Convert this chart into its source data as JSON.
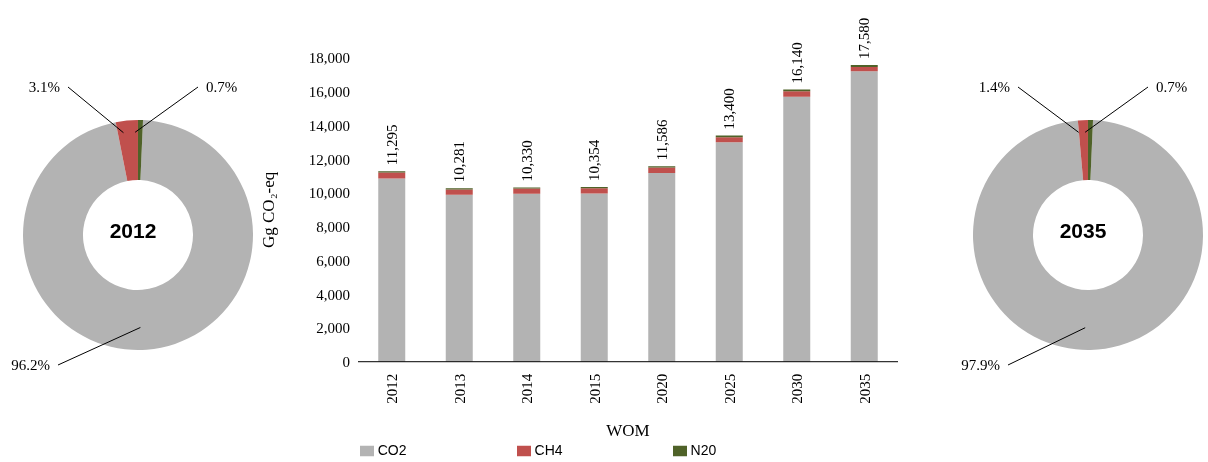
{
  "chart_data": [
    {
      "type": "donut",
      "title": "2012",
      "categories": [
        null,
        null,
        null
      ],
      "values": [
        96.2,
        3.1,
        0.7
      ],
      "colors": [
        "#b3b3b3",
        "#c0504d",
        "#4f6228"
      ],
      "value_labels": [
        "96.2%",
        "3.1%",
        "0.7%"
      ]
    },
    {
      "type": "bar",
      "stacked": true,
      "ylabel": "Gg CO₂-eq",
      "xlabel": "WOM",
      "categories": [
        "2012",
        "2013",
        "2014",
        "2015",
        "2020",
        "2025",
        "2030",
        "2035"
      ],
      "series": [
        {
          "name": "CO2",
          "color": "#b3b3b3",
          "values": [
            10865,
            9901,
            9950,
            9974,
            11186,
            13010,
            15700,
            17210
          ]
        },
        {
          "name": "CH4",
          "color": "#c0504d",
          "values": [
            350,
            310,
            310,
            310,
            320,
            300,
            330,
            250
          ]
        },
        {
          "name": "N20",
          "color": "#4f6228",
          "values": [
            80,
            70,
            70,
            70,
            80,
            90,
            110,
            120
          ]
        }
      ],
      "totals": [
        "11,295",
        "10,281",
        "10,330",
        "10,354",
        "11,586",
        "13,400",
        "16,140",
        "17,580"
      ],
      "ylim": [
        0,
        18000
      ],
      "yticks": [
        {
          "value": 0,
          "label": "0"
        },
        {
          "value": 2000,
          "label": "2,000"
        },
        {
          "value": 4000,
          "label": "4,000"
        },
        {
          "value": 6000,
          "label": "6,000"
        },
        {
          "value": 8000,
          "label": "8,000"
        },
        {
          "value": 10000,
          "label": "10,000"
        },
        {
          "value": 12000,
          "label": "12,000"
        },
        {
          "value": 14000,
          "label": "14,000"
        },
        {
          "value": 16000,
          "label": "16,000"
        },
        {
          "value": 18000,
          "label": "18,000"
        }
      ],
      "legend": "bottom"
    },
    {
      "type": "donut",
      "title": "2035",
      "categories": [
        null,
        null,
        null
      ],
      "values": [
        97.9,
        1.4,
        0.7
      ],
      "colors": [
        "#b3b3b3",
        "#c0504d",
        "#4f6228"
      ],
      "value_labels": [
        "97.9%",
        "1.4%",
        "0.7%"
      ]
    }
  ]
}
